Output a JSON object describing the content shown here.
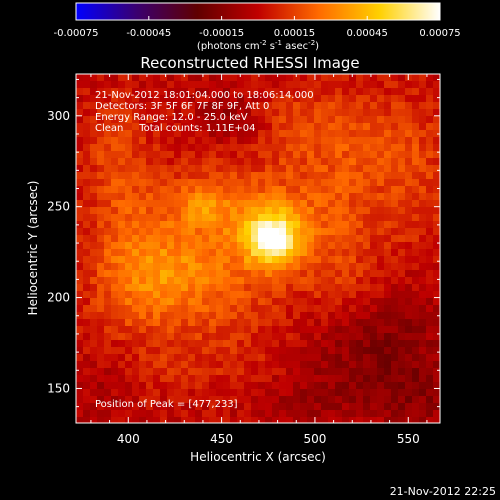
{
  "chart_data": {
    "type": "heatmap",
    "title": "Reconstructed RHESSI Image",
    "xlabel": "Heliocentric X (arcsec)",
    "ylabel": "Heliocentric Y (arcsec)",
    "xlim": [
      372,
      567
    ],
    "ylim": [
      131,
      323
    ],
    "x_ticks": [
      400,
      450,
      500,
      550
    ],
    "y_ticks": [
      150,
      200,
      250,
      300
    ],
    "colorbar": {
      "min": -0.00075,
      "max": 0.00075,
      "tick_labels": [
        "-0.00075",
        "-0.00045",
        "-0.00015",
        "0.00015",
        "0.00045",
        "0.00075"
      ],
      "unit_label": "(photons cm",
      "unit_exp1": "-2",
      "unit_mid": " s",
      "unit_exp2": "-1",
      "unit_mid2": " asec",
      "unit_exp3": "-2",
      "unit_end": ")",
      "stops": [
        "#0000ff",
        "#3a0070",
        "#600000",
        "#c00000",
        "#ff6a00",
        "#ffd000",
        "#ffffff"
      ]
    },
    "annotations": [
      "21-Nov-2012 18:01:04.000 to 18:06:14.000",
      "Detectors: 3F 5F 6F 7F 8F 9F, Att 0",
      "Energy Range: 12.0 - 25.0 keV",
      "Clean     Total counts: 1.11E+04"
    ],
    "peak_label": "Position of Peak = [477,233]",
    "peak": {
      "x": 477,
      "y": 233,
      "value": 0.00075
    },
    "sources": [
      {
        "x": 477,
        "y": 233,
        "sx": 10,
        "sy": 10,
        "a": 0.00063
      },
      {
        "x": 462,
        "y": 242,
        "sx": 30,
        "sy": 25,
        "a": 0.00022
      },
      {
        "x": 440,
        "y": 250,
        "sx": 12,
        "sy": 8,
        "a": 0.00018
      },
      {
        "x": 400,
        "y": 240,
        "sx": 18,
        "sy": 24,
        "a": 0.00016
      },
      {
        "x": 425,
        "y": 218,
        "sx": 22,
        "sy": 14,
        "a": 0.00015
      },
      {
        "x": 405,
        "y": 200,
        "sx": 20,
        "sy": 18,
        "a": 0.00014
      },
      {
        "x": 443,
        "y": 195,
        "sx": 26,
        "sy": 16,
        "a": 0.00013
      },
      {
        "x": 510,
        "y": 245,
        "sx": 20,
        "sy": 28,
        "a": 0.00014
      },
      {
        "x": 535,
        "y": 288,
        "sx": 22,
        "sy": 20,
        "a": 0.00013
      },
      {
        "x": 495,
        "y": 298,
        "sx": 18,
        "sy": 14,
        "a": 0.00012
      },
      {
        "x": 393,
        "y": 285,
        "sx": 12,
        "sy": 18,
        "a": 0.00013
      },
      {
        "x": 555,
        "y": 255,
        "sx": 14,
        "sy": 28,
        "a": 0.0001
      },
      {
        "x": 468,
        "y": 162,
        "sx": 28,
        "sy": 12,
        "a": 8e-05
      },
      {
        "x": 418,
        "y": 160,
        "sx": 16,
        "sy": 10,
        "a": 7e-05
      },
      {
        "x": 518,
        "y": 205,
        "sx": 14,
        "sy": 14,
        "a": 9e-05
      },
      {
        "x": 455,
        "y": 300,
        "sx": 12,
        "sy": 12,
        "a": -0.0001
      },
      {
        "x": 535,
        "y": 175,
        "sx": 24,
        "sy": 24,
        "a": -0.00016
      },
      {
        "x": 495,
        "y": 150,
        "sx": 22,
        "sy": 14,
        "a": -0.0001
      },
      {
        "x": 385,
        "y": 150,
        "sx": 12,
        "sy": 12,
        "a": -6e-05
      },
      {
        "x": 555,
        "y": 145,
        "sx": 14,
        "sy": 12,
        "a": -0.0001
      }
    ]
  },
  "timestamp": "21-Nov-2012 22:25"
}
